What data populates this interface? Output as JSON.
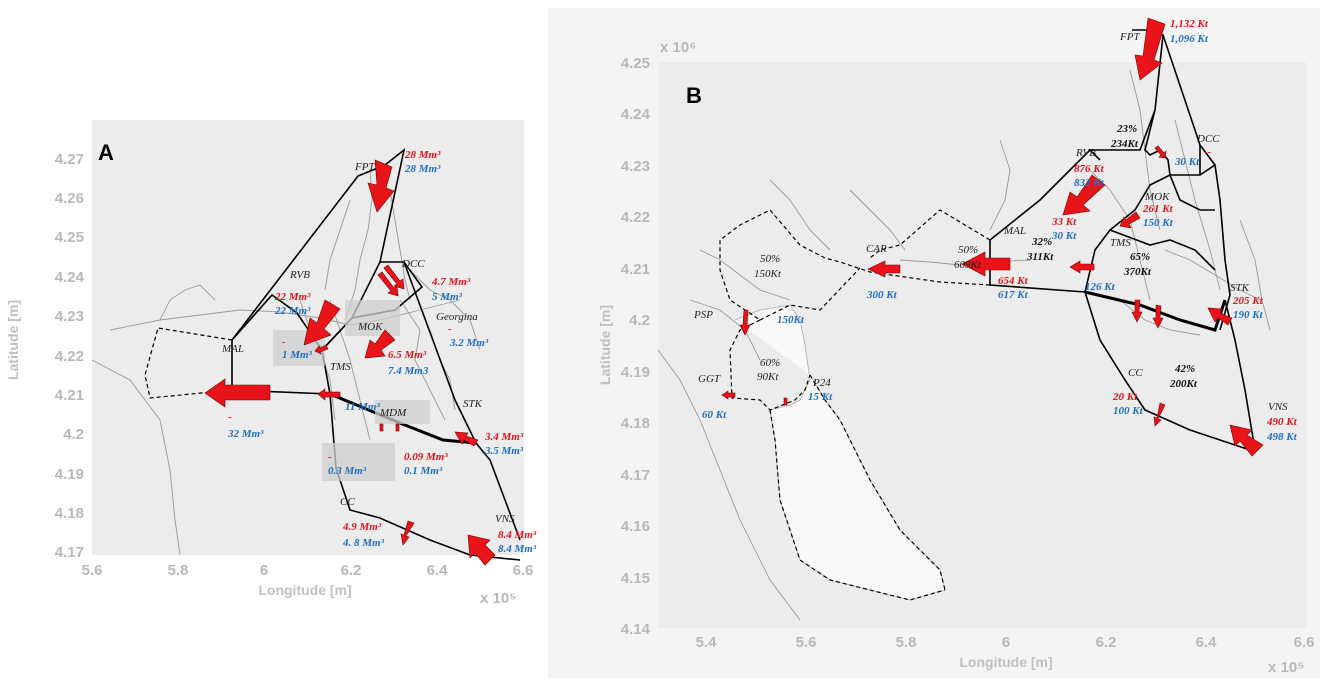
{
  "panels": [
    {
      "letter": "A",
      "xlabel": "Longitude [m]",
      "ylabel": "Latitude [m]",
      "x_multiplier": "x 10⁵",
      "xticks": [
        "5.6",
        "5.8",
        "6",
        "6.2",
        "6.4",
        "6.6"
      ],
      "yticks": [
        "4.27",
        "4.26",
        "4.25",
        "4.24",
        "4.23",
        "4.22",
        "4.21",
        "4.2",
        "4.19",
        "4.18",
        "4.17"
      ],
      "stations": [
        "FPT",
        "RVB",
        "DCC",
        "MOK",
        "Georgina",
        "MAL",
        "TMS",
        "MDM",
        "STK",
        "CC",
        "VNS"
      ],
      "labels": {
        "fpt_red": "28 Mm³",
        "fpt_blue": "28 Mm³",
        "rvb_red": "22 Mm³",
        "rvb_blue": "22 Mm³",
        "dcc_red": "4.7 Mm³",
        "dcc_blue": "5 Mm³",
        "geo_blue": "3.2 Mm³",
        "tms_red": "-",
        "tms_blue": "1 Mm³",
        "mok_red": "6.5 Mm³",
        "mok_blue": "7.4  Mm3",
        "mal_red": "-",
        "mal_blue": "32 Mm³",
        "mdm_blue": "11 Mm³",
        "stk_red": "3.4 Mm³",
        "stk_blue": "3.5 Mm³",
        "box_red": "-",
        "box_blue": "0.3 Mm³",
        "mdm2_red": "0.09 Mm³",
        "mdm2_blue": "0.1 Mm³",
        "cc_red": "4.9 Mm³",
        "cc_blue": "4. 8 Mm³",
        "vns_red": "8.4 Mm³",
        "vns_blue": "8.4 Mm³",
        "dash": "-"
      }
    },
    {
      "letter": "B",
      "xlabel": "Longitude [m]",
      "ylabel": "Latitude [m]",
      "x_multiplier": "x 10⁵",
      "y_multiplier": "x 10⁶",
      "xticks": [
        "5.4",
        "5.6",
        "5.8",
        "6",
        "6.2",
        "6.4",
        "6.6"
      ],
      "yticks": [
        "4.25",
        "4.24",
        "4.23",
        "4.22",
        "4.21",
        "4.2",
        "4.19",
        "4.18",
        "4.17",
        "4.16",
        "4.15",
        "4.14"
      ],
      "stations": [
        "FPT",
        "DCC",
        "RVB",
        "MOK",
        "MAL",
        "TMS",
        "CAR",
        "STK",
        "PSP",
        "GGT",
        "P24",
        "CC",
        "VNS"
      ],
      "labels": {
        "fpt_red": "1,132 Kt",
        "fpt_blue": "1,096 Kt",
        "dcc_red": "--",
        "dcc_blue": "30 Kt",
        "pct_top": "23%",
        "pct_top_kt": "234Kt",
        "rvb_red": "876 Kt",
        "rvb_blue": "832 Kt",
        "mok_red": "261 Kt",
        "mok_blue": "150 Kt",
        "tms_red": "33 Kt",
        "tms_blue": "30 Kt",
        "pct_mid": "32%",
        "pct_mid_kt": "311Kt",
        "pct_mok": "65%",
        "pct_mok_kt": "370Kt",
        "pct_mal": "50%",
        "pct_mal_kt": "609Kt",
        "mal_red": "654 Kt",
        "mal_blue": "617 Kt",
        "tms2_blue": "126 Kt",
        "stk_red": "205 Kt",
        "stk_blue": "190 Kt",
        "car_blue": "300 Kt",
        "pct_sp": "50%",
        "pct_sp_kt": "150Kt",
        "psp_blue": "150Kt",
        "pct_cb": "60%",
        "pct_cb_kt": "90Kt",
        "ggt_blue": "60 Kt",
        "p24_blue": "15 Kt",
        "pct_cc": "42%",
        "pct_cc_kt": "200Kt",
        "cc_red": "20 Kt",
        "cc_blue": "100 Kt",
        "vns_red": "490 Kt",
        "vns_blue": "498 Kt"
      }
    }
  ]
}
